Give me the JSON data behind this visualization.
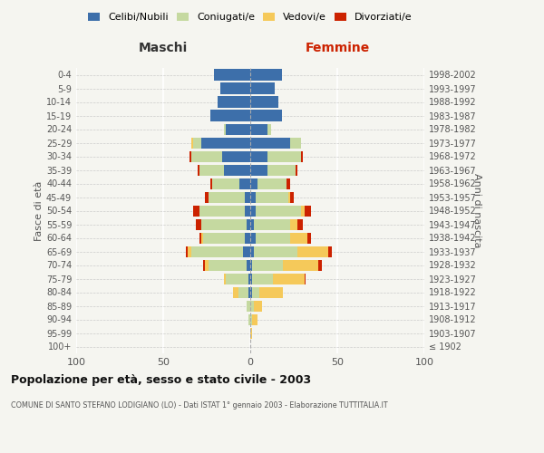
{
  "age_groups": [
    "100+",
    "95-99",
    "90-94",
    "85-89",
    "80-84",
    "75-79",
    "70-74",
    "65-69",
    "60-64",
    "55-59",
    "50-54",
    "45-49",
    "40-44",
    "35-39",
    "30-34",
    "25-29",
    "20-24",
    "15-19",
    "10-14",
    "5-9",
    "0-4"
  ],
  "birth_years": [
    "≤ 1902",
    "1903-1907",
    "1908-1912",
    "1913-1917",
    "1918-1922",
    "1923-1927",
    "1928-1932",
    "1933-1937",
    "1938-1942",
    "1943-1947",
    "1948-1952",
    "1953-1957",
    "1958-1962",
    "1963-1967",
    "1968-1972",
    "1973-1977",
    "1978-1982",
    "1983-1987",
    "1988-1992",
    "1993-1997",
    "1998-2002"
  ],
  "males": {
    "celibi": [
      0,
      0,
      0,
      0,
      1,
      1,
      2,
      4,
      3,
      2,
      3,
      3,
      6,
      15,
      16,
      28,
      14,
      23,
      19,
      17,
      21
    ],
    "coniugati": [
      0,
      0,
      1,
      2,
      6,
      13,
      22,
      30,
      24,
      26,
      26,
      21,
      16,
      14,
      18,
      5,
      1,
      0,
      0,
      0,
      0
    ],
    "vedovi": [
      0,
      0,
      0,
      0,
      3,
      1,
      2,
      2,
      1,
      0,
      0,
      0,
      0,
      0,
      0,
      1,
      0,
      0,
      0,
      0,
      0
    ],
    "divorziati": [
      0,
      0,
      0,
      0,
      0,
      0,
      1,
      1,
      1,
      3,
      4,
      2,
      1,
      1,
      1,
      0,
      0,
      0,
      0,
      0,
      0
    ]
  },
  "females": {
    "nubili": [
      0,
      0,
      0,
      0,
      1,
      1,
      1,
      2,
      3,
      2,
      3,
      3,
      4,
      10,
      10,
      23,
      10,
      18,
      16,
      14,
      18
    ],
    "coniugate": [
      0,
      0,
      1,
      2,
      4,
      12,
      18,
      25,
      20,
      21,
      26,
      19,
      17,
      16,
      19,
      6,
      2,
      0,
      0,
      0,
      0
    ],
    "vedove": [
      0,
      1,
      3,
      5,
      14,
      18,
      20,
      18,
      10,
      4,
      2,
      1,
      0,
      0,
      0,
      0,
      0,
      0,
      0,
      0,
      0
    ],
    "divorziate": [
      0,
      0,
      0,
      0,
      0,
      1,
      2,
      2,
      2,
      3,
      4,
      2,
      2,
      1,
      1,
      0,
      0,
      0,
      0,
      0,
      0
    ]
  },
  "colors": {
    "celibi": "#3d6faa",
    "coniugati": "#c5d9a0",
    "vedovi": "#f5c95a",
    "divorziati": "#cc2200"
  },
  "xlim": 100,
  "title": "Popolazione per età, sesso e stato civile - 2003",
  "subtitle": "COMUNE DI SANTO STEFANO LODIGIANO (LO) - Dati ISTAT 1° gennaio 2003 - Elaborazione TUTTITALIA.IT",
  "ylabel_left": "Fasce di età",
  "ylabel_right": "Anni di nascita",
  "xlabel_left": "Maschi",
  "xlabel_right": "Femmine",
  "background_color": "#f5f5f0",
  "bar_height": 0.8
}
